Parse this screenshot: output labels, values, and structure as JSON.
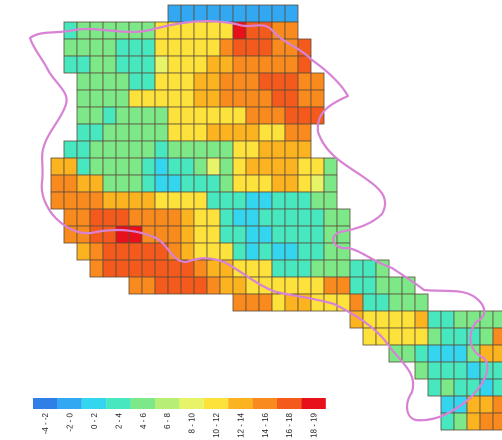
{
  "legend": {
    "classes": [
      {
        "label": "-4 - -2",
        "color": "#2f7fe6"
      },
      {
        "label": "-2 - 0",
        "color": "#33a8f2"
      },
      {
        "label": "0 - 2",
        "color": "#33d6ee"
      },
      {
        "label": "2 - 4",
        "color": "#47e8c0"
      },
      {
        "label": "4 - 6",
        "color": "#7de888"
      },
      {
        "label": "6 - 8",
        "color": "#b6ee76"
      },
      {
        "label": "8 - 10",
        "color": "#e8f468"
      },
      {
        "label": "10 - 12",
        "color": "#fde23c"
      },
      {
        "label": "12 - 14",
        "color": "#fcb320"
      },
      {
        "label": "14 - 16",
        "color": "#f98a1e"
      },
      {
        "label": "16 - 18",
        "color": "#f35a1c"
      },
      {
        "label": "18 - 19",
        "color": "#e8101a"
      }
    ]
  },
  "boundary_color": "#d882d6",
  "grid_rows": [
    "-----------BBBBBBBBBB------------------",
    "---DEEEEEEHHHHHHLKKJJ------------------",
    "---EEEEDDDHHHHHJKKKJJK-----------------",
    "---DDEEDDDGHHHIIJJJJJK-----------------",
    "----EEEEDDHHHIIJJJKKKJJ-----------------",
    "----EEEEHHHHHIIJJJJKKJJ----------------",
    "----EEDEEEEHHHHHHJJJKKK----------------",
    "----DDEEEEEHHHIIIIHHJJ-----------------",
    "---DDEEEEEDEEEEEHHIIII-----------------",
    "--IIDEEEEDCDDEGEHIIIIHHE---------------",
    "--JJIIEEEDCCDDDEHHHIIHGE---------------",
    "--JJJJIIIIHHHHDDDCCDDDEE---------------",
    "---JJKKKJJJJIHHDCCDDDDDEE--------------",
    "---JJKKLLJJJIHHDDCCDDDDEE--------------",
    "----IJKKKKKJIHHHDCDCCDDEE--------------",
    "-----JKKKKKKKJIIHHHDDDEEEDDE-----------",
    "--------JJKKKKJIIHHHHHHJJDDEEE---------",
    "----------------JJJHIIHHHJDDEEE--------",
    "-------------------------IHHHHIDDEEEE--",
    "--------------------------HHHHHEDDDEJJE",
    "----------------------------EEDCCCEIIKK",
    "------------------------------EDDDCDDJK",
    "-------------------------------DEDDCDDJK",
    "--------------------------------CCIIJJJ",
    "--------------------------------DEIJJKK"
  ]
}
